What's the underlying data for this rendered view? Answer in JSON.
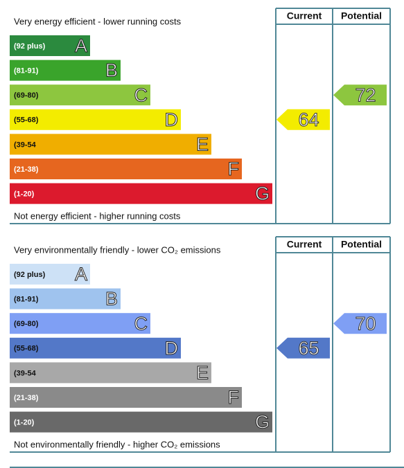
{
  "panels": [
    {
      "title": "Very energy efficient - lower running costs",
      "footer": "Not energy efficient - higher running costs",
      "headers": [
        "Current",
        "Potential"
      ],
      "bands": [
        {
          "range": "(92 plus)",
          "letter": "A",
          "color": "#2b8a3e",
          "text_color": "#ffffff"
        },
        {
          "range": "(81-91)",
          "letter": "B",
          "color": "#3aa42b",
          "text_color": "#ffffff"
        },
        {
          "range": "(69-80)",
          "letter": "C",
          "color": "#8dc63f",
          "text_color": "#111111"
        },
        {
          "range": "(55-68)",
          "letter": "D",
          "color": "#f3ec00",
          "text_color": "#111111"
        },
        {
          "range": "(39-54",
          "letter": "E",
          "color": "#f0ae00",
          "text_color": "#111111"
        },
        {
          "range": "(21-38)",
          "letter": "F",
          "color": "#e6661f",
          "text_color": "#ffffff"
        },
        {
          "range": "(1-20)",
          "letter": "G",
          "color": "#dc1a2d",
          "text_color": "#ffffff"
        }
      ],
      "current": 64,
      "potential": 72
    },
    {
      "title": "Very environmentally friendly - lower CO₂ emissions",
      "footer": "Not environmentally friendly - higher CO₂ emissions",
      "headers": [
        "Current",
        "Potential"
      ],
      "bands": [
        {
          "range": "(92 plus)",
          "letter": "A",
          "color": "#cde1f6",
          "text_color": "#111111"
        },
        {
          "range": "(81-91)",
          "letter": "B",
          "color": "#9fc3ee",
          "text_color": "#111111"
        },
        {
          "range": "(69-80)",
          "letter": "C",
          "color": "#7f9ff4",
          "text_color": "#111111"
        },
        {
          "range": "(55-68)",
          "letter": "D",
          "color": "#5378c8",
          "text_color": "#111111"
        },
        {
          "range": "(39-54",
          "letter": "E",
          "color": "#a8a8a8",
          "text_color": "#111111"
        },
        {
          "range": "(21-38)",
          "letter": "F",
          "color": "#8a8a8a",
          "text_color": "#ffffff"
        },
        {
          "range": "(1-20)",
          "letter": "G",
          "color": "#696969",
          "text_color": "#ffffff"
        }
      ],
      "current": 65,
      "potential": 70
    }
  ]
}
